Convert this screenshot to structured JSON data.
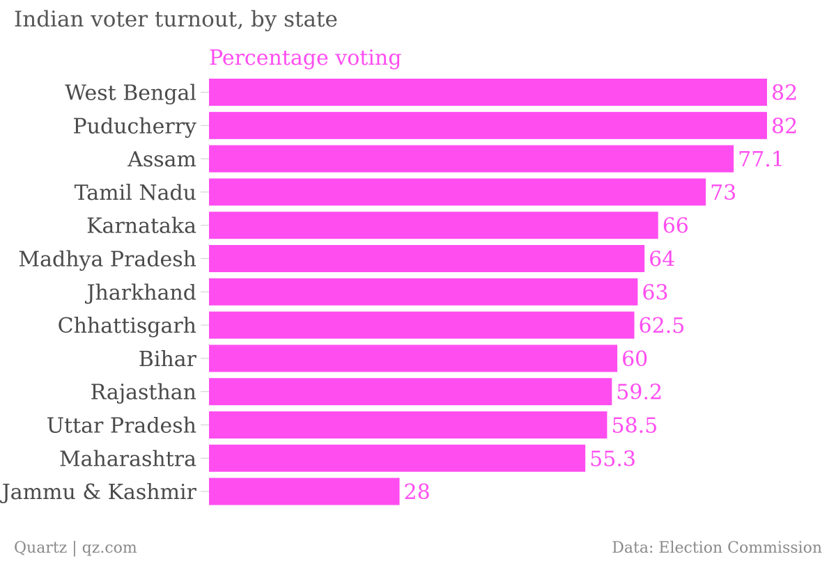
{
  "title": "Indian voter turnout, by state",
  "footer": {
    "credit": "Quartz | qz.com",
    "source": "Data: Election Commission"
  },
  "colors": {
    "bar": "#ff4df0",
    "label": "#ff4df0",
    "category_text": "#4a4a4a",
    "tick": "#cccccc"
  },
  "chart_data": {
    "type": "bar",
    "orientation": "horizontal",
    "series": [
      {
        "name": "Percentage voting",
        "values": [
          82,
          82,
          77.1,
          73,
          66,
          64,
          63,
          62.5,
          60,
          59.2,
          58.5,
          55.3,
          28
        ]
      }
    ],
    "categories": [
      "West Bengal",
      "Puducherry",
      "Assam",
      "Tamil Nadu",
      "Karnataka",
      "Madhya Pradesh",
      "Jharkhand",
      "Chhattisgarh",
      "Bihar",
      "Rajasthan",
      "Uttar Pradesh",
      "Maharashtra",
      "Jammu & Kashmir"
    ],
    "value_labels": [
      "82",
      "82",
      "77.1",
      "73",
      "66",
      "64",
      "63",
      "62.5",
      "60",
      "59.2",
      "58.5",
      "55.3",
      "28"
    ],
    "xlim": [
      0,
      82
    ],
    "grid": false,
    "legend": "none"
  }
}
